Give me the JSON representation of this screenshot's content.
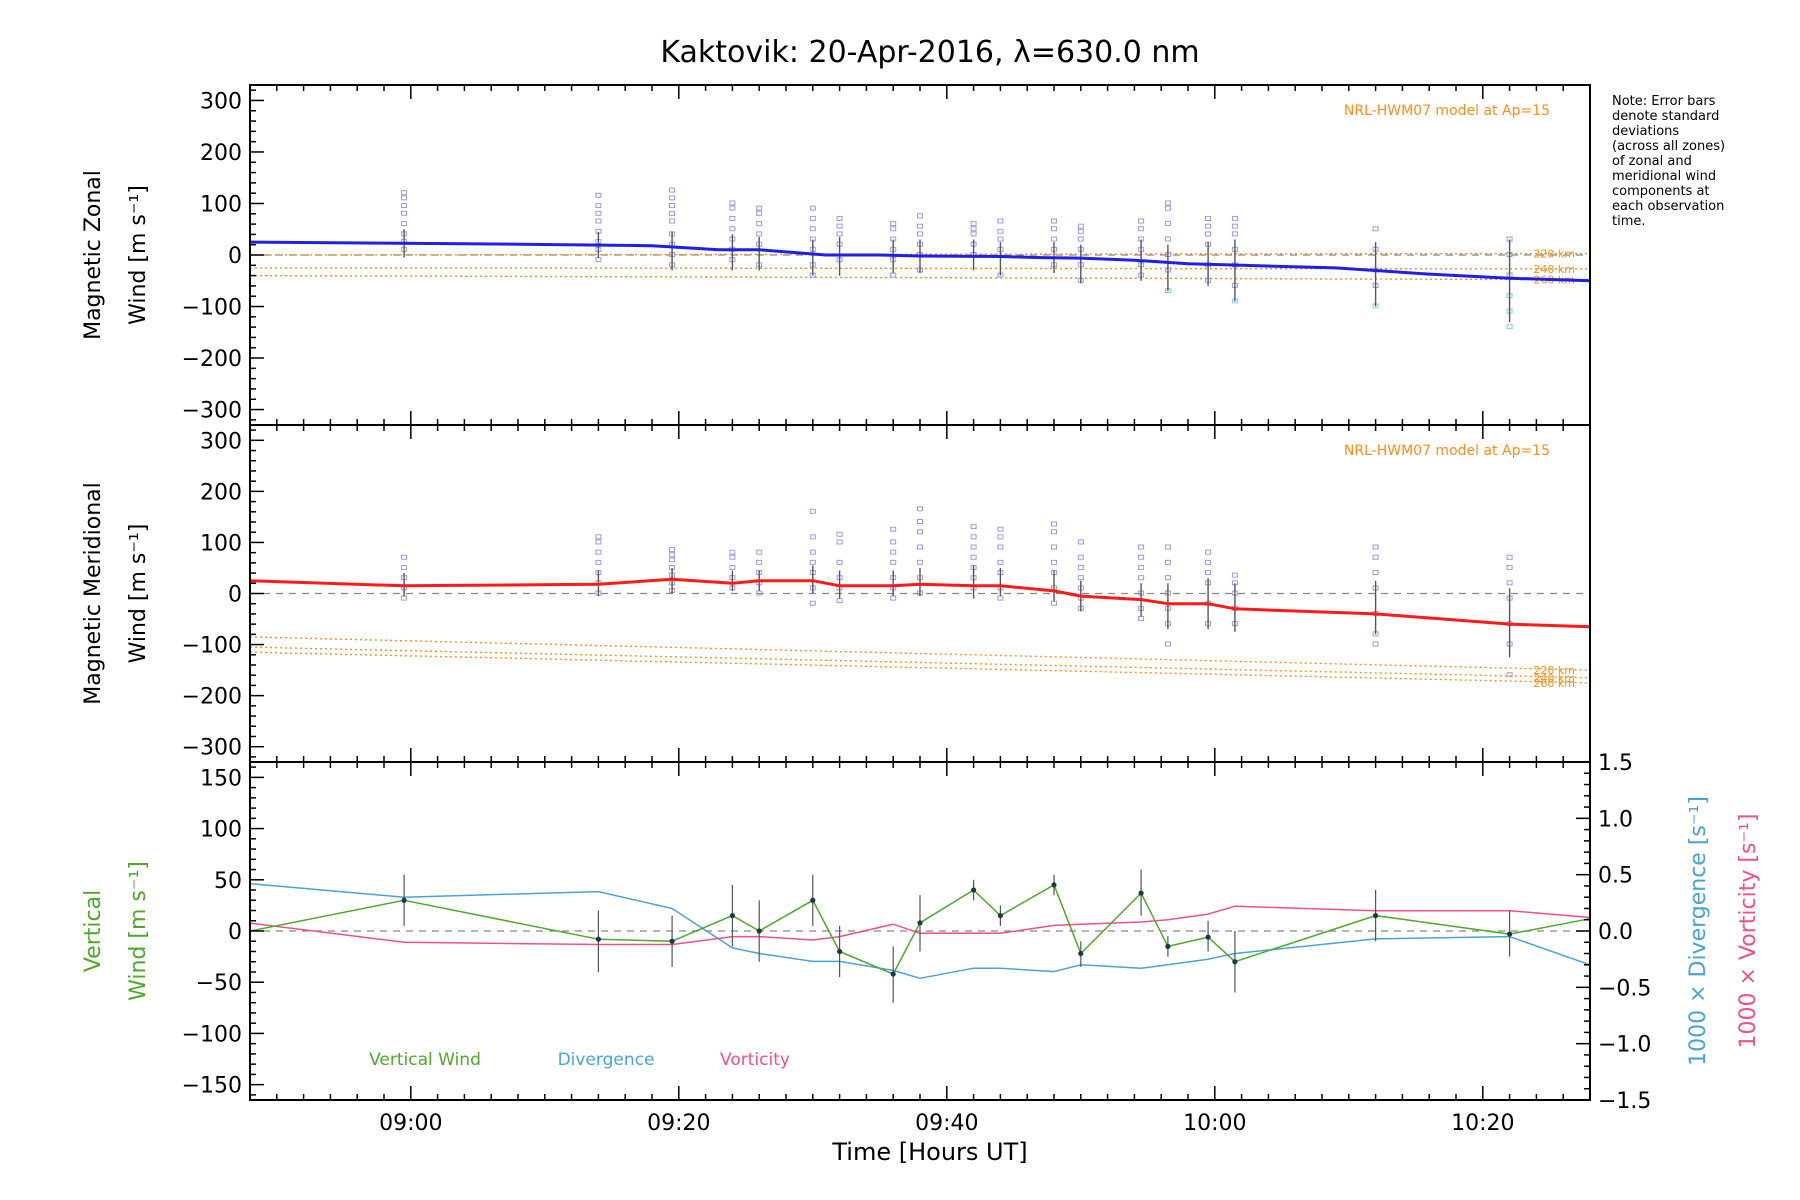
{
  "title": "Kaktovik: 20-Apr-2016, λ=630.0 nm",
  "note": [
    "Note: Error bars",
    "denote standard",
    "deviations",
    "(across all zones)",
    "of zonal and",
    "meridional wind",
    "components at",
    "each observation",
    "time."
  ],
  "colors": {
    "zonal": "#1f1fe6",
    "meridional": "#ff1a1a",
    "model": "#ff8c1a",
    "vertical": "#4fa82a",
    "divergence": "#4aa3d6",
    "vorticity": "#f0508a",
    "scatter": "#9b9be0",
    "scatter_alt": "#7fd0e8",
    "errorbar": "#555555"
  },
  "x_axis": {
    "label": "Time [Hours UT]",
    "range_minutes": [
      528,
      628
    ],
    "ticks": [
      {
        "m": 540,
        "label": "09:00"
      },
      {
        "m": 560,
        "label": "09:20"
      },
      {
        "m": 580,
        "label": "09:40"
      },
      {
        "m": 600,
        "label": "10:00"
      },
      {
        "m": 620,
        "label": "10:20"
      }
    ]
  },
  "chart_data": [
    {
      "type": "line",
      "panel": "zonal",
      "ylabel_lines": [
        "Magnetic Zonal",
        "Wind [m s⁻¹]"
      ],
      "ylim": [
        -330,
        330
      ],
      "yticks": [
        300,
        200,
        100,
        0,
        -100,
        -200,
        -300
      ],
      "model_label": "NRL-HWM07 model at Ap=15",
      "model_series": [
        {
          "name": "220 km",
          "x": [
            528,
            628
          ],
          "y": [
            0,
            3
          ]
        },
        {
          "name": "240 km",
          "x": [
            528,
            628
          ],
          "y": [
            -25,
            -27
          ]
        },
        {
          "name": "260 km",
          "x": [
            528,
            628
          ],
          "y": [
            -40,
            -48
          ]
        }
      ],
      "series": {
        "x": [
          528,
          544,
          558,
          563,
          566,
          571,
          575,
          578,
          584,
          587,
          590,
          594,
          598,
          602,
          609,
          616,
          622,
          628
        ],
        "y": [
          25,
          22,
          18,
          10,
          10,
          0,
          0,
          -2,
          -3,
          -5,
          -6,
          -10,
          -17,
          -20,
          -25,
          -37,
          -45,
          -50
        ]
      },
      "obs": [
        {
          "x": 539.5,
          "lo": -5,
          "hi": 50,
          "pts": [
            120,
            110,
            95,
            80,
            60,
            40,
            25,
            10
          ]
        },
        {
          "x": 554,
          "lo": -5,
          "hi": 45,
          "pts": [
            115,
            95,
            80,
            65,
            45,
            25,
            10,
            -10
          ]
        },
        {
          "x": 559.5,
          "lo": -30,
          "hi": 45,
          "pts": [
            125,
            110,
            95,
            80,
            65,
            40,
            20,
            0,
            -20
          ]
        },
        {
          "x": 564,
          "lo": -30,
          "hi": 40,
          "pts": [
            100,
            90,
            70,
            50,
            30,
            10,
            -10
          ]
        },
        {
          "x": 566,
          "lo": -30,
          "hi": 35,
          "pts": [
            90,
            80,
            60,
            40,
            20,
            -20
          ]
        },
        {
          "x": 570,
          "lo": -40,
          "hi": 30,
          "pts": [
            90,
            70,
            50,
            30,
            10,
            -20,
            -40
          ]
        },
        {
          "x": 572,
          "lo": -40,
          "hi": 35,
          "pts": [
            70,
            55,
            40,
            20,
            -10
          ]
        },
        {
          "x": 576,
          "lo": -35,
          "hi": 30,
          "pts": [
            60,
            50,
            30,
            10,
            -10,
            -40
          ]
        },
        {
          "x": 578,
          "lo": -35,
          "hi": 30,
          "pts": [
            75,
            55,
            40,
            20,
            0,
            -30
          ]
        },
        {
          "x": 582,
          "lo": -30,
          "hi": 30,
          "pts": [
            60,
            50,
            40,
            20,
            0
          ]
        },
        {
          "x": 584,
          "lo": -40,
          "hi": 25,
          "pts": [
            65,
            45,
            30,
            10,
            -40
          ]
        },
        {
          "x": 588,
          "lo": -35,
          "hi": 25,
          "pts": [
            65,
            50,
            30,
            10,
            -20
          ]
        },
        {
          "x": 590,
          "lo": -55,
          "hi": 20,
          "pts": [
            55,
            45,
            30,
            10,
            -20,
            -50
          ]
        },
        {
          "x": 594.5,
          "lo": -50,
          "hi": 30,
          "pts": [
            65,
            50,
            30,
            10,
            -20,
            -40
          ]
        },
        {
          "x": 596.5,
          "lo": -70,
          "hi": 20,
          "pts": [
            100,
            90,
            60,
            30,
            0,
            -30,
            -70
          ]
        },
        {
          "x": 599.5,
          "lo": -60,
          "hi": 25,
          "pts": [
            70,
            55,
            40,
            20,
            -20,
            -50
          ]
        },
        {
          "x": 601.5,
          "lo": -90,
          "hi": 30,
          "pts": [
            70,
            55,
            40,
            10,
            -20,
            -60,
            -90
          ]
        },
        {
          "x": 612,
          "lo": -100,
          "hi": 25,
          "pts": [
            50,
            10,
            -30,
            -60,
            -100
          ]
        },
        {
          "x": 622,
          "lo": -130,
          "hi": 30,
          "pts": [
            30,
            0,
            -40,
            -80,
            -110,
            -140
          ]
        }
      ]
    },
    {
      "type": "line",
      "panel": "meridional",
      "ylabel_lines": [
        "Magnetic Meridional",
        "Wind [m s⁻¹]"
      ],
      "ylim": [
        -330,
        330
      ],
      "yticks": [
        300,
        200,
        100,
        0,
        -100,
        -200,
        -300
      ],
      "model_label": "NRL-HWM07 model at Ap=15",
      "model_series": [
        {
          "name": "220 km",
          "x": [
            528,
            628
          ],
          "y": [
            -85,
            -150
          ]
        },
        {
          "name": "240 km",
          "x": [
            528,
            628
          ],
          "y": [
            -105,
            -165
          ]
        },
        {
          "name": "260 km",
          "x": [
            528,
            628
          ],
          "y": [
            -115,
            -175
          ]
        }
      ],
      "series": {
        "x": [
          528,
          539.5,
          554,
          559.5,
          564,
          566,
          570,
          572,
          576,
          578,
          582,
          584,
          588,
          590,
          594.5,
          596.5,
          599.5,
          601.5,
          612,
          622,
          628
        ],
        "y": [
          25,
          15,
          18,
          28,
          20,
          25,
          25,
          15,
          15,
          18,
          15,
          15,
          5,
          -5,
          -12,
          -20,
          -20,
          -30,
          -40,
          -60,
          -65
        ]
      },
      "obs": [
        {
          "x": 539.5,
          "lo": -5,
          "hi": 40,
          "pts": [
            70,
            50,
            30,
            10,
            -10
          ]
        },
        {
          "x": 554,
          "lo": -5,
          "hi": 45,
          "pts": [
            110,
            100,
            80,
            60,
            40,
            20,
            0
          ]
        },
        {
          "x": 559.5,
          "lo": 0,
          "hi": 50,
          "pts": [
            85,
            75,
            65,
            50,
            35,
            20,
            5
          ]
        },
        {
          "x": 564,
          "lo": 5,
          "hi": 45,
          "pts": [
            80,
            70,
            50,
            30,
            10
          ]
        },
        {
          "x": 566,
          "lo": 5,
          "hi": 45,
          "pts": [
            80,
            60,
            40,
            20,
            0
          ]
        },
        {
          "x": 570,
          "lo": 0,
          "hi": 55,
          "pts": [
            160,
            110,
            80,
            60,
            40,
            10,
            -20
          ]
        },
        {
          "x": 572,
          "lo": -10,
          "hi": 45,
          "pts": [
            115,
            100,
            60,
            30,
            10,
            -15
          ]
        },
        {
          "x": 576,
          "lo": -5,
          "hi": 45,
          "pts": [
            125,
            100,
            80,
            60,
            30,
            10,
            -10
          ]
        },
        {
          "x": 578,
          "lo": -5,
          "hi": 50,
          "pts": [
            165,
            140,
            120,
            90,
            60,
            30,
            0
          ]
        },
        {
          "x": 582,
          "lo": -10,
          "hi": 55,
          "pts": [
            130,
            110,
            90,
            70,
            50,
            30,
            10
          ]
        },
        {
          "x": 584,
          "lo": -5,
          "hi": 50,
          "pts": [
            125,
            110,
            90,
            60,
            40,
            10,
            -10
          ]
        },
        {
          "x": 588,
          "lo": -15,
          "hi": 45,
          "pts": [
            135,
            120,
            90,
            60,
            40,
            10,
            -20
          ]
        },
        {
          "x": 590,
          "lo": -35,
          "hi": 25,
          "pts": [
            100,
            70,
            50,
            30,
            10,
            -10,
            -30
          ]
        },
        {
          "x": 594.5,
          "lo": -45,
          "hi": 20,
          "pts": [
            90,
            70,
            50,
            30,
            0,
            -30,
            -50
          ]
        },
        {
          "x": 596.5,
          "lo": -70,
          "hi": 20,
          "pts": [
            90,
            60,
            30,
            0,
            -30,
            -60,
            -100
          ]
        },
        {
          "x": 599.5,
          "lo": -70,
          "hi": 30,
          "pts": [
            80,
            60,
            40,
            20,
            -20,
            -60
          ]
        },
        {
          "x": 601.5,
          "lo": -75,
          "hi": 20,
          "pts": [
            35,
            20,
            0,
            -30,
            -60
          ]
        },
        {
          "x": 612,
          "lo": -80,
          "hi": 25,
          "pts": [
            90,
            70,
            40,
            10,
            -40,
            -80,
            -100
          ]
        },
        {
          "x": 622,
          "lo": -125,
          "hi": 10,
          "pts": [
            70,
            50,
            20,
            -10,
            -60,
            -100,
            -160
          ]
        }
      ]
    },
    {
      "type": "line",
      "panel": "vertical",
      "ylabel_lines": [
        "Vertical",
        "Wind [m s⁻¹]"
      ],
      "ylim": [
        -165,
        165
      ],
      "yticks": [
        150,
        100,
        50,
        0,
        -50,
        -100,
        -150
      ],
      "right_axis": {
        "ylim": [
          -1.5,
          1.5
        ],
        "yticks": [
          "1.5",
          "1.0",
          "0.5",
          "0.0",
          "−0.5",
          "−1.0",
          "−1.5"
        ],
        "label_divergence": "1000 × Divergence [s⁻¹]",
        "label_vorticity": "1000 × Vorticity [s⁻¹]"
      },
      "legend": [
        "Vertical Wind",
        "Divergence",
        "Vorticity"
      ],
      "series": [
        {
          "name": "Vertical Wind",
          "x": [
            528,
            539.5,
            554,
            559.5,
            564,
            566,
            570,
            572,
            576,
            578,
            582,
            584,
            588,
            590,
            594.5,
            596.5,
            599.5,
            601.5,
            612,
            622,
            628
          ],
          "y": [
            0,
            30,
            -8,
            -10,
            15,
            0,
            30,
            -20,
            -42,
            8,
            40,
            15,
            45,
            -22,
            37,
            -15,
            -6,
            -30,
            15,
            -3,
            12
          ],
          "err_lo": [
            null,
            5,
            -40,
            -35,
            -15,
            -30,
            5,
            -45,
            -70,
            -20,
            30,
            5,
            35,
            -35,
            15,
            -25,
            -20,
            -60,
            -10,
            -25,
            null
          ],
          "err_hi": [
            null,
            55,
            20,
            15,
            45,
            30,
            55,
            5,
            -15,
            35,
            50,
            25,
            55,
            -10,
            60,
            -5,
            10,
            0,
            40,
            20,
            null
          ]
        },
        {
          "name": "Divergence",
          "x": [
            528,
            539.5,
            554,
            559.5,
            564,
            566,
            570,
            572,
            576,
            578,
            582,
            584,
            588,
            590,
            594.5,
            596.5,
            599.5,
            601.5,
            612,
            622,
            628
          ],
          "y": [
            0.42,
            0.3,
            0.35,
            0.2,
            -0.15,
            -0.2,
            -0.27,
            -0.27,
            -0.35,
            -0.42,
            -0.33,
            -0.33,
            -0.36,
            -0.3,
            -0.33,
            -0.3,
            -0.25,
            -0.2,
            -0.07,
            -0.05,
            -0.3
          ]
        },
        {
          "name": "Vorticity",
          "x": [
            528,
            539.5,
            554,
            559.5,
            564,
            566,
            570,
            572,
            576,
            578,
            582,
            584,
            588,
            590,
            594.5,
            596.5,
            599.5,
            601.5,
            612,
            622,
            628
          ],
          "y": [
            0.07,
            -0.1,
            -0.12,
            -0.12,
            -0.05,
            -0.05,
            -0.08,
            -0.05,
            0.06,
            -0.02,
            -0.02,
            -0.02,
            0.05,
            0.06,
            0.08,
            0.1,
            0.15,
            0.22,
            0.18,
            0.18,
            0.12
          ]
        }
      ]
    }
  ]
}
